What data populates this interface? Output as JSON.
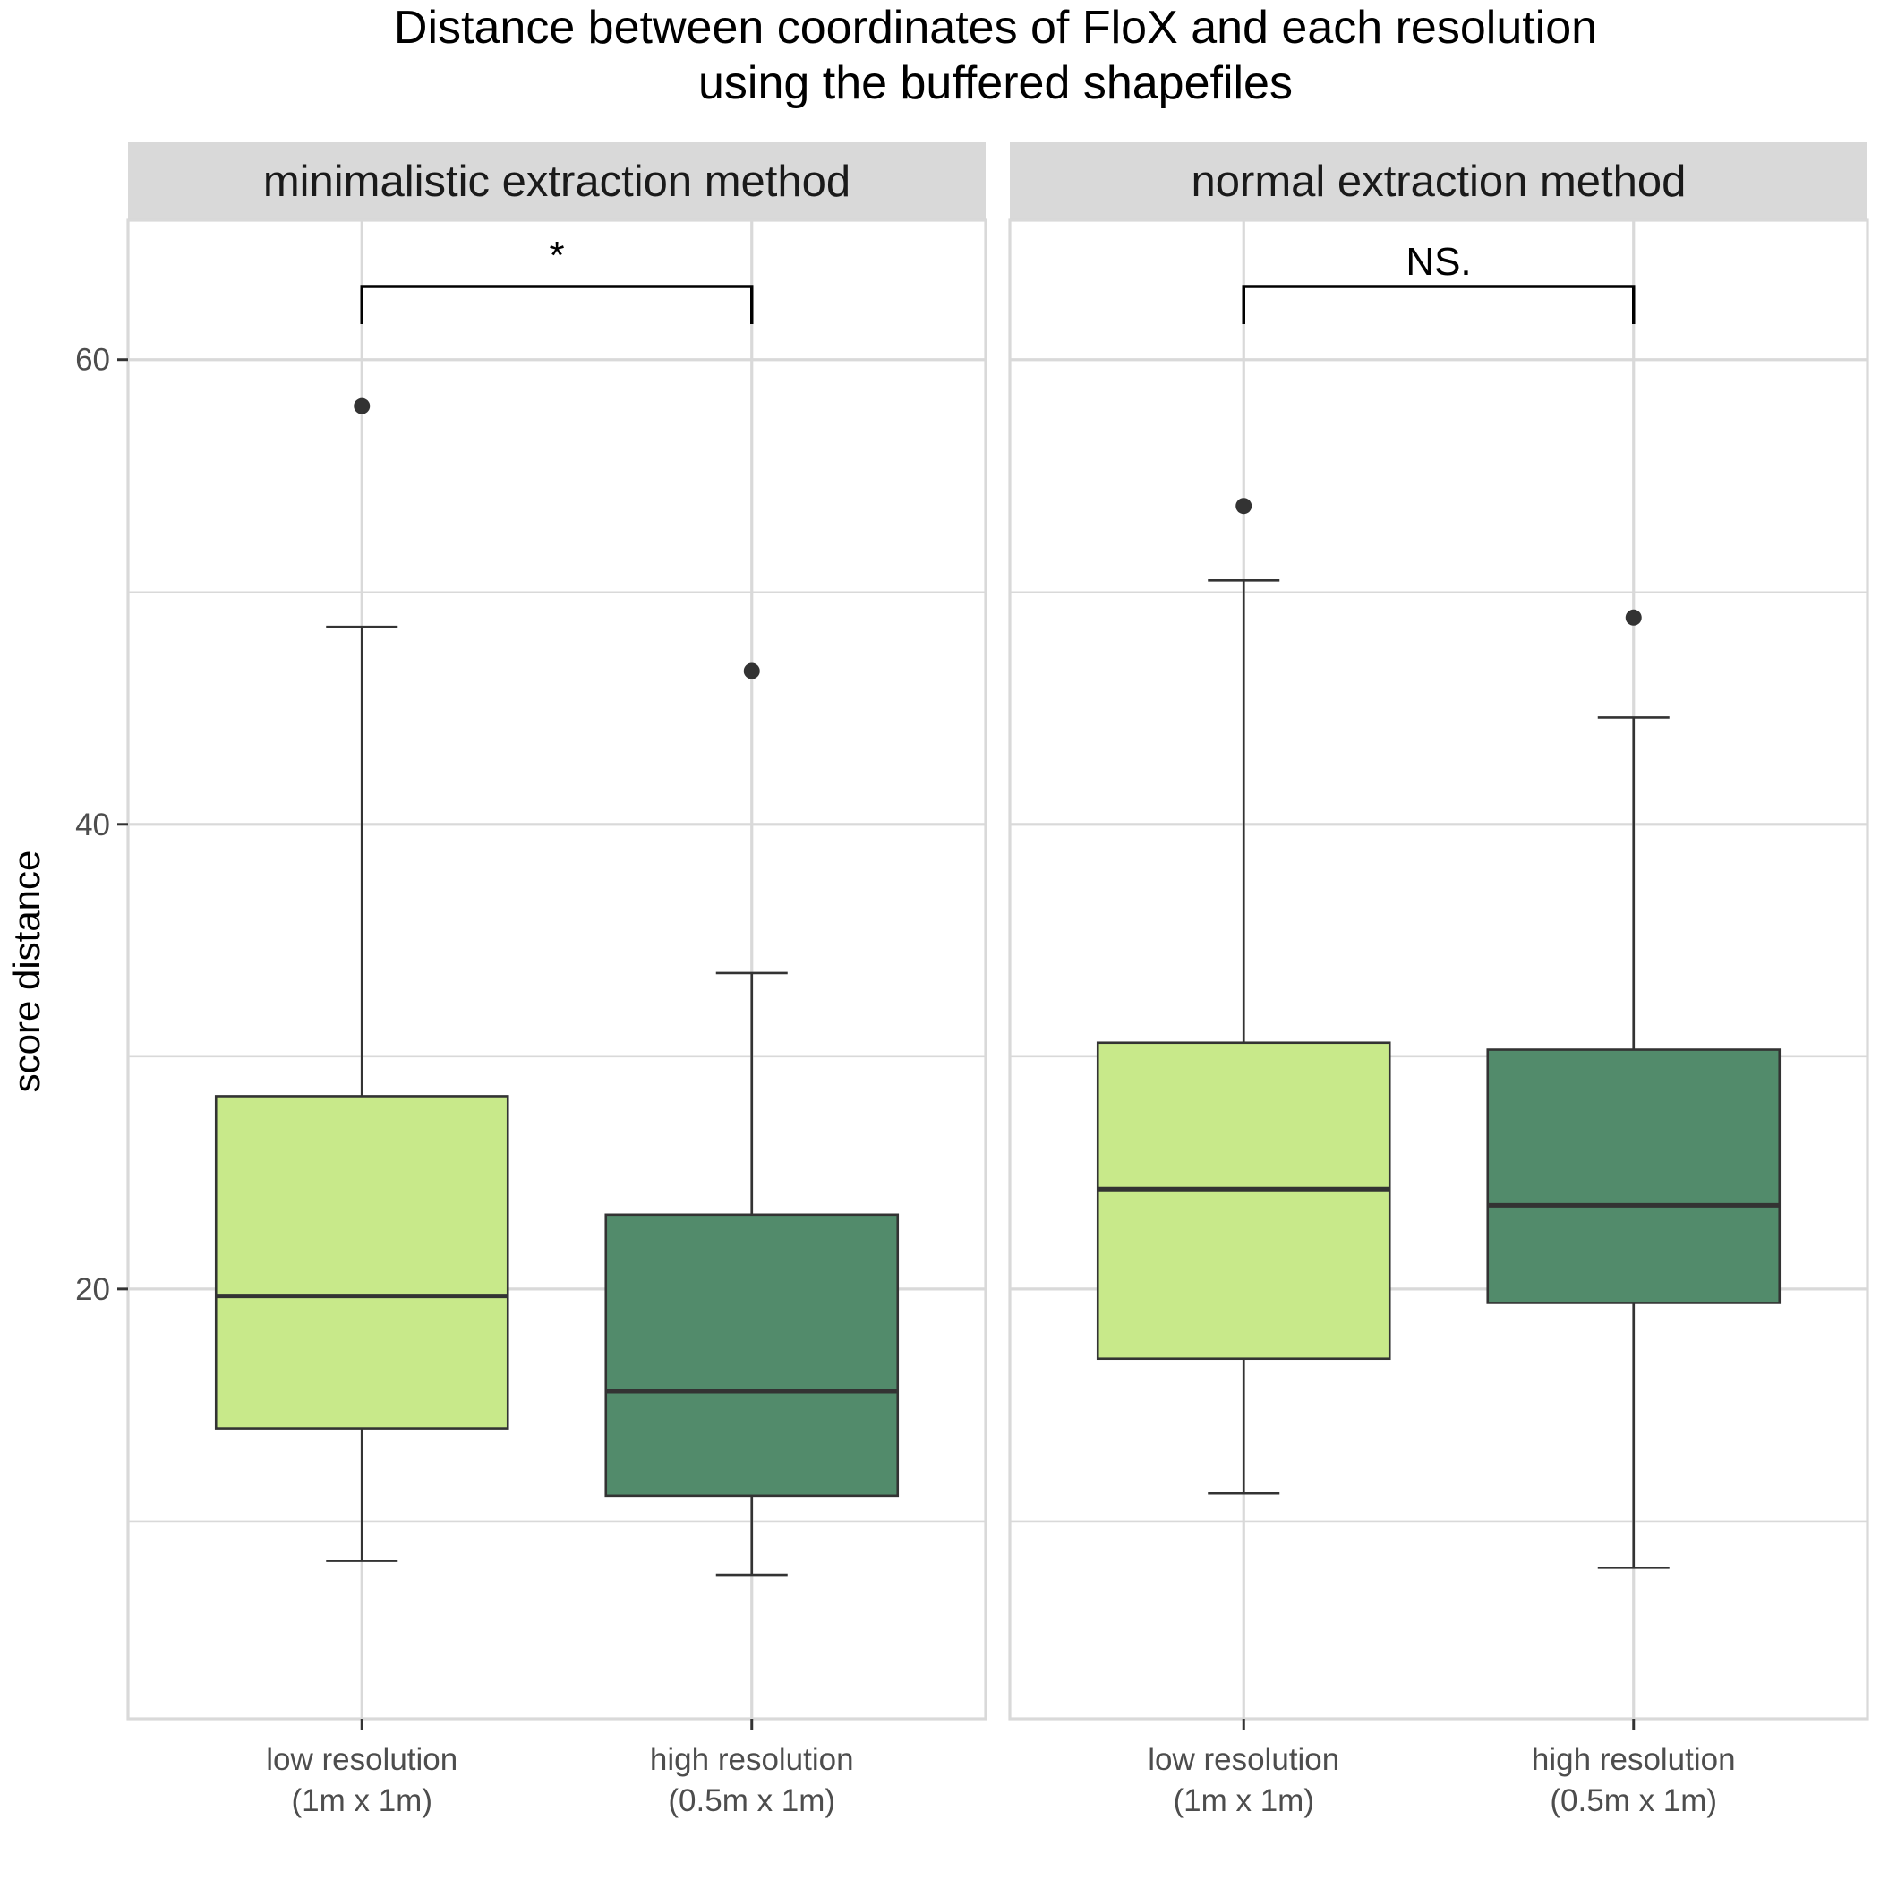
{
  "chart_data": {
    "type": "boxplot",
    "title": [
      "Distance between coordinates of FloX and each resolution",
      "using the buffered shapefiles"
    ],
    "ylabel": "score distance",
    "xlabel": "",
    "ylim": [
      1.5,
      66
    ],
    "yticks": [
      20,
      40,
      60
    ],
    "grid": true,
    "categories": [
      [
        "low resolution",
        "(1m x 1m)"
      ],
      [
        "high resolution",
        "(0.5m x 1m)"
      ]
    ],
    "colors": {
      "low": "#c8e98a",
      "high": "#528b6b",
      "line": "#333333",
      "grid": "#d9d9d9",
      "strip": "#d9d9d9"
    },
    "panels": [
      {
        "name": "minimalistic extraction method",
        "significance": "*",
        "boxes": [
          {
            "category": 0,
            "color_key": "low",
            "lower_whisker": 8.3,
            "q1": 14.0,
            "median": 19.7,
            "q3": 28.3,
            "upper_whisker": 48.5,
            "outliers": [
              58.0
            ]
          },
          {
            "category": 1,
            "color_key": "high",
            "lower_whisker": 7.7,
            "q1": 11.1,
            "median": 15.6,
            "q3": 23.2,
            "upper_whisker": 33.6,
            "outliers": [
              46.6
            ]
          }
        ]
      },
      {
        "name": "normal extraction method",
        "significance": "NS.",
        "boxes": [
          {
            "category": 0,
            "color_key": "low",
            "lower_whisker": 11.2,
            "q1": 17.0,
            "median": 24.3,
            "q3": 30.6,
            "upper_whisker": 50.5,
            "outliers": [
              53.7
            ]
          },
          {
            "category": 1,
            "color_key": "high",
            "lower_whisker": 8.0,
            "q1": 19.4,
            "median": 23.6,
            "q3": 30.3,
            "upper_whisker": 44.6,
            "outliers": [
              48.9
            ]
          }
        ]
      }
    ]
  }
}
